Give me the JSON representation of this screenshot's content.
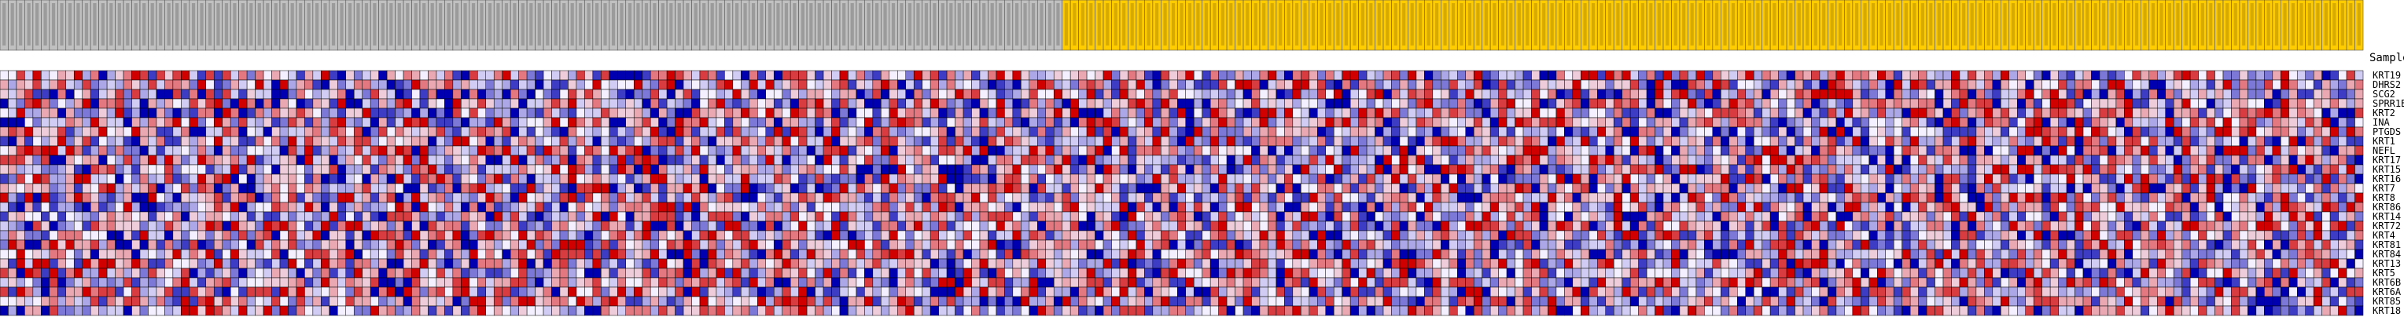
{
  "chart_data": {
    "type": "heatmap",
    "title": "",
    "corner_label": "SampleName",
    "class_colors": {
      "A": "#c0c0c0",
      "B": "#ffcc00"
    },
    "color_scale": {
      "low": "#0000b0",
      "mid": "#f5f0ff",
      "high": "#d00000"
    },
    "sample_classes": {
      "A_count": 129,
      "B_count": 158
    },
    "rows": [
      "KRT19",
      "DHRS2",
      "SCG2",
      "SPRR1B",
      "KRT2",
      "INA",
      "PTGDS",
      "KRT1",
      "NEFL",
      "KRT17",
      "KRT15",
      "KRT16",
      "KRT7",
      "KRT8",
      "KRT86",
      "KRT14",
      "KRT72",
      "KRT4",
      "KRT81",
      "KRT84",
      "KRT13",
      "KRT5",
      "KRT6B",
      "KRT6A",
      "KRT85",
      "KRT18"
    ],
    "sample_labels_legible": false,
    "values_legible": false
  }
}
